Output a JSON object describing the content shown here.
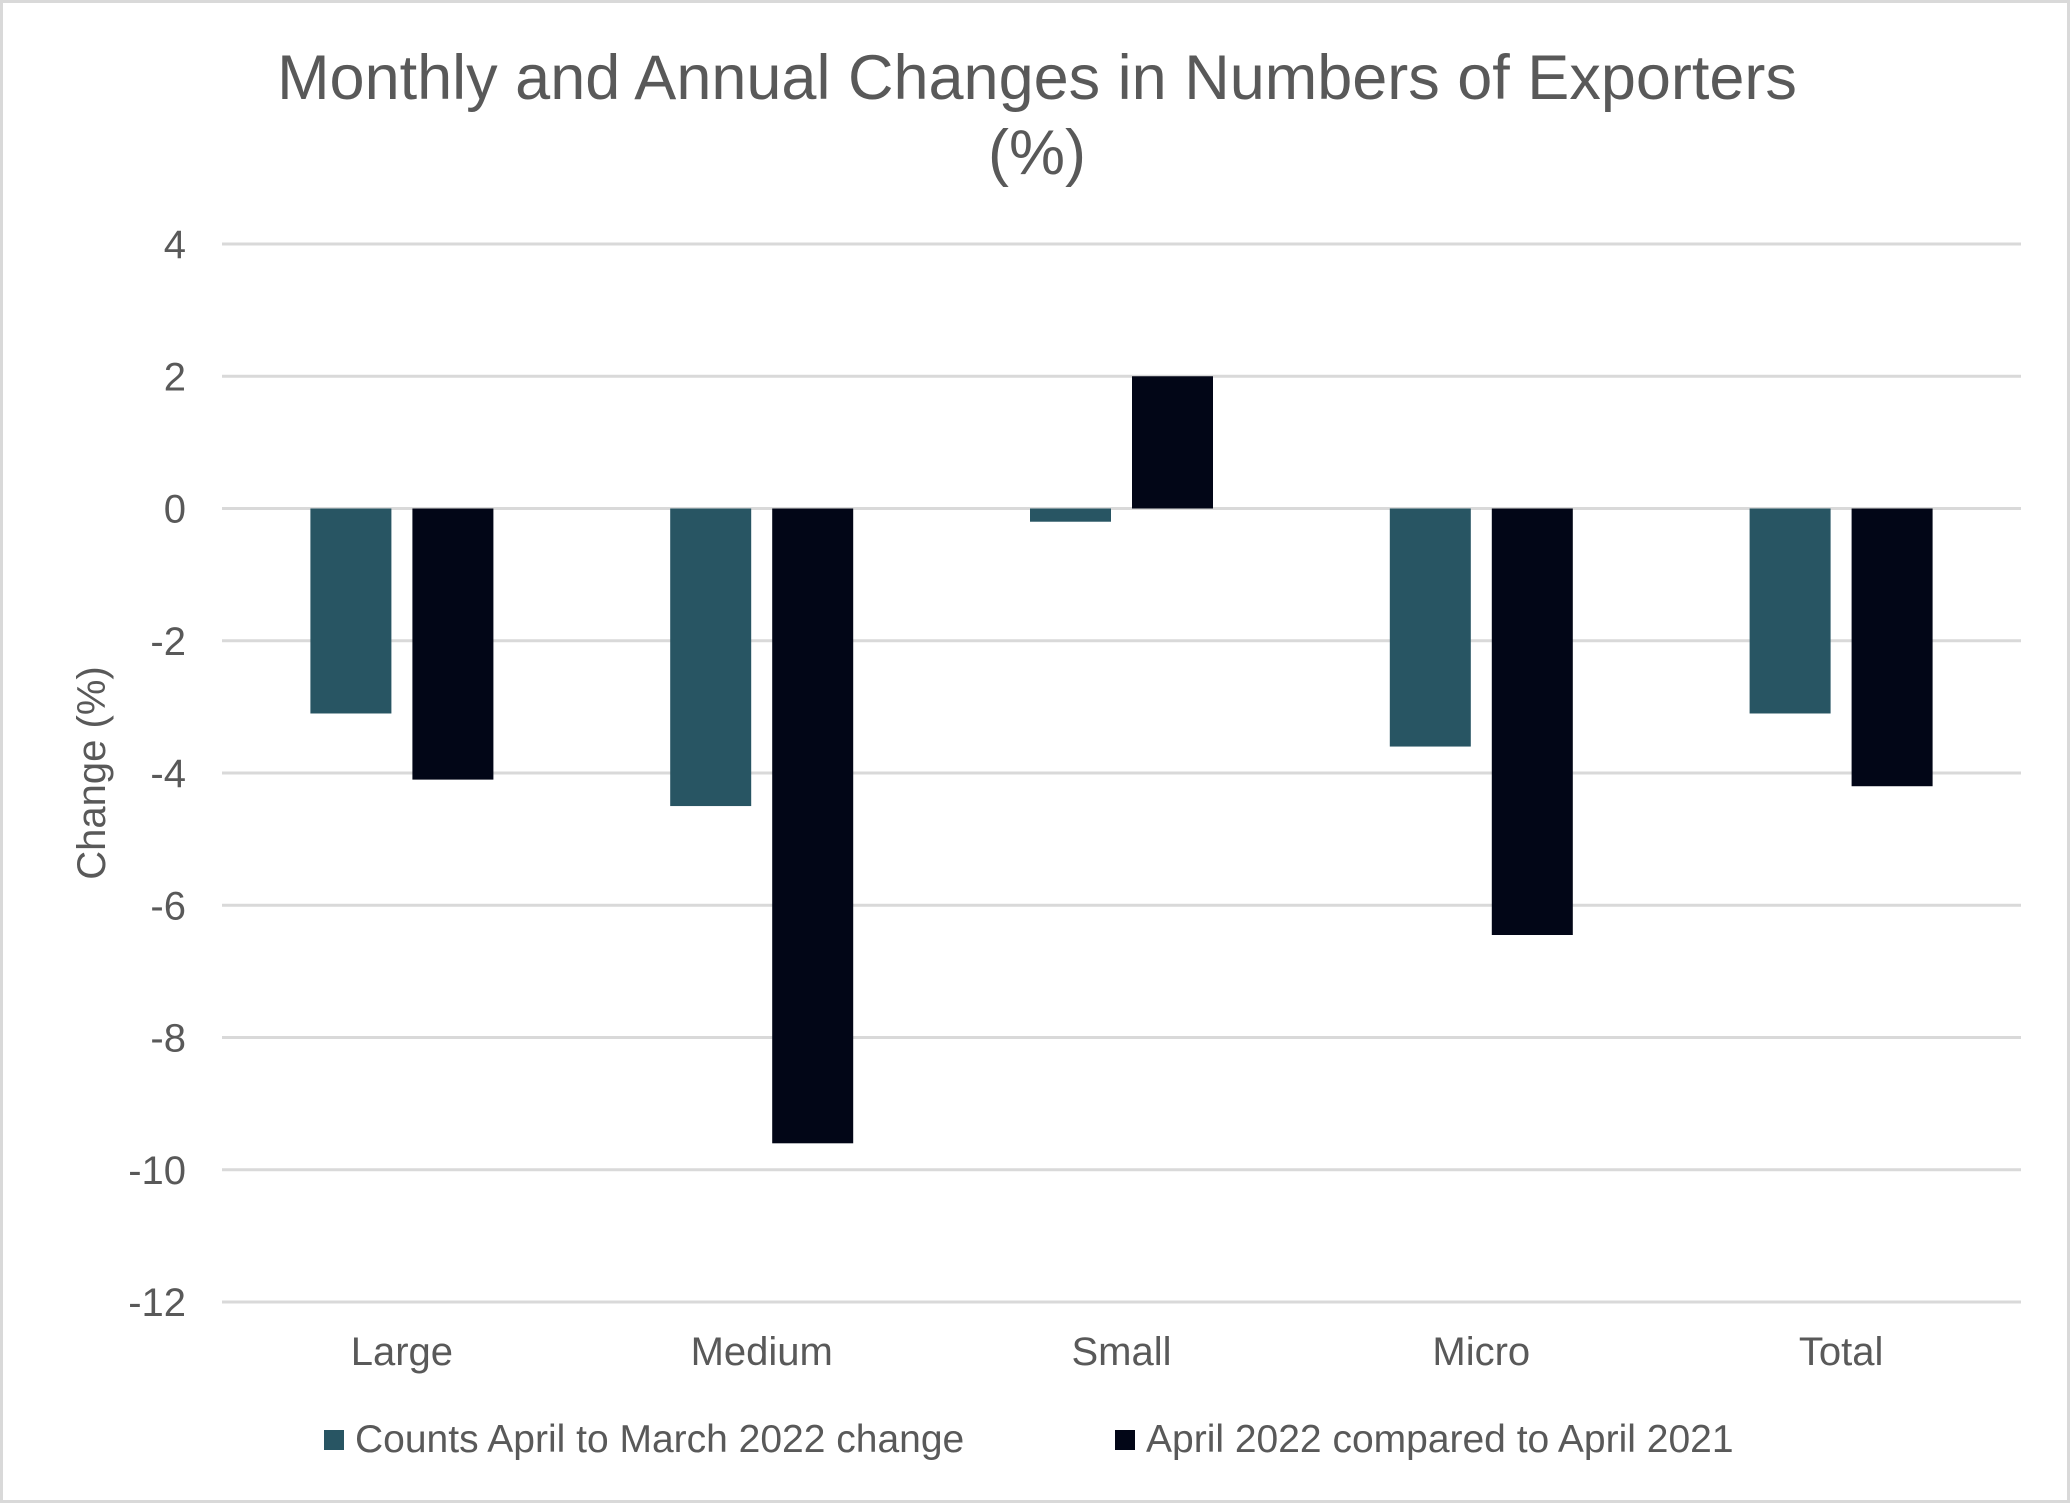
{
  "chart_data": {
    "type": "bar",
    "title": "Monthly and Annual Changes in Numbers of Exporters",
    "title_line2": "(%)",
    "xlabel": "",
    "ylabel": "Change (%)",
    "ylim": [
      -12,
      4
    ],
    "ytick_step": 2,
    "yticks": [
      4,
      2,
      0,
      -2,
      -4,
      -6,
      -8,
      -10,
      -12
    ],
    "ytick_labels": [
      "4",
      "2",
      "0",
      "-2",
      "-4",
      "-6",
      "-8",
      "-10",
      "-12"
    ],
    "grid": true,
    "legend_position": "bottom",
    "categories": [
      "Large",
      "Medium",
      "Small",
      "Micro",
      "Total"
    ],
    "series": [
      {
        "name": "Counts April to March 2022 change",
        "color": "#285563",
        "values": [
          -3.1,
          -4.5,
          -0.2,
          -3.6,
          -3.1
        ]
      },
      {
        "name": "April 2022 compared to April 2021",
        "color": "#020617",
        "values": [
          -4.1,
          -9.6,
          2.0,
          -6.45,
          -4.2
        ]
      }
    ]
  },
  "colors": {
    "text": "#595959",
    "gridline": "#d9d9d9",
    "border": "#d9d9d9",
    "background": "#ffffff"
  }
}
